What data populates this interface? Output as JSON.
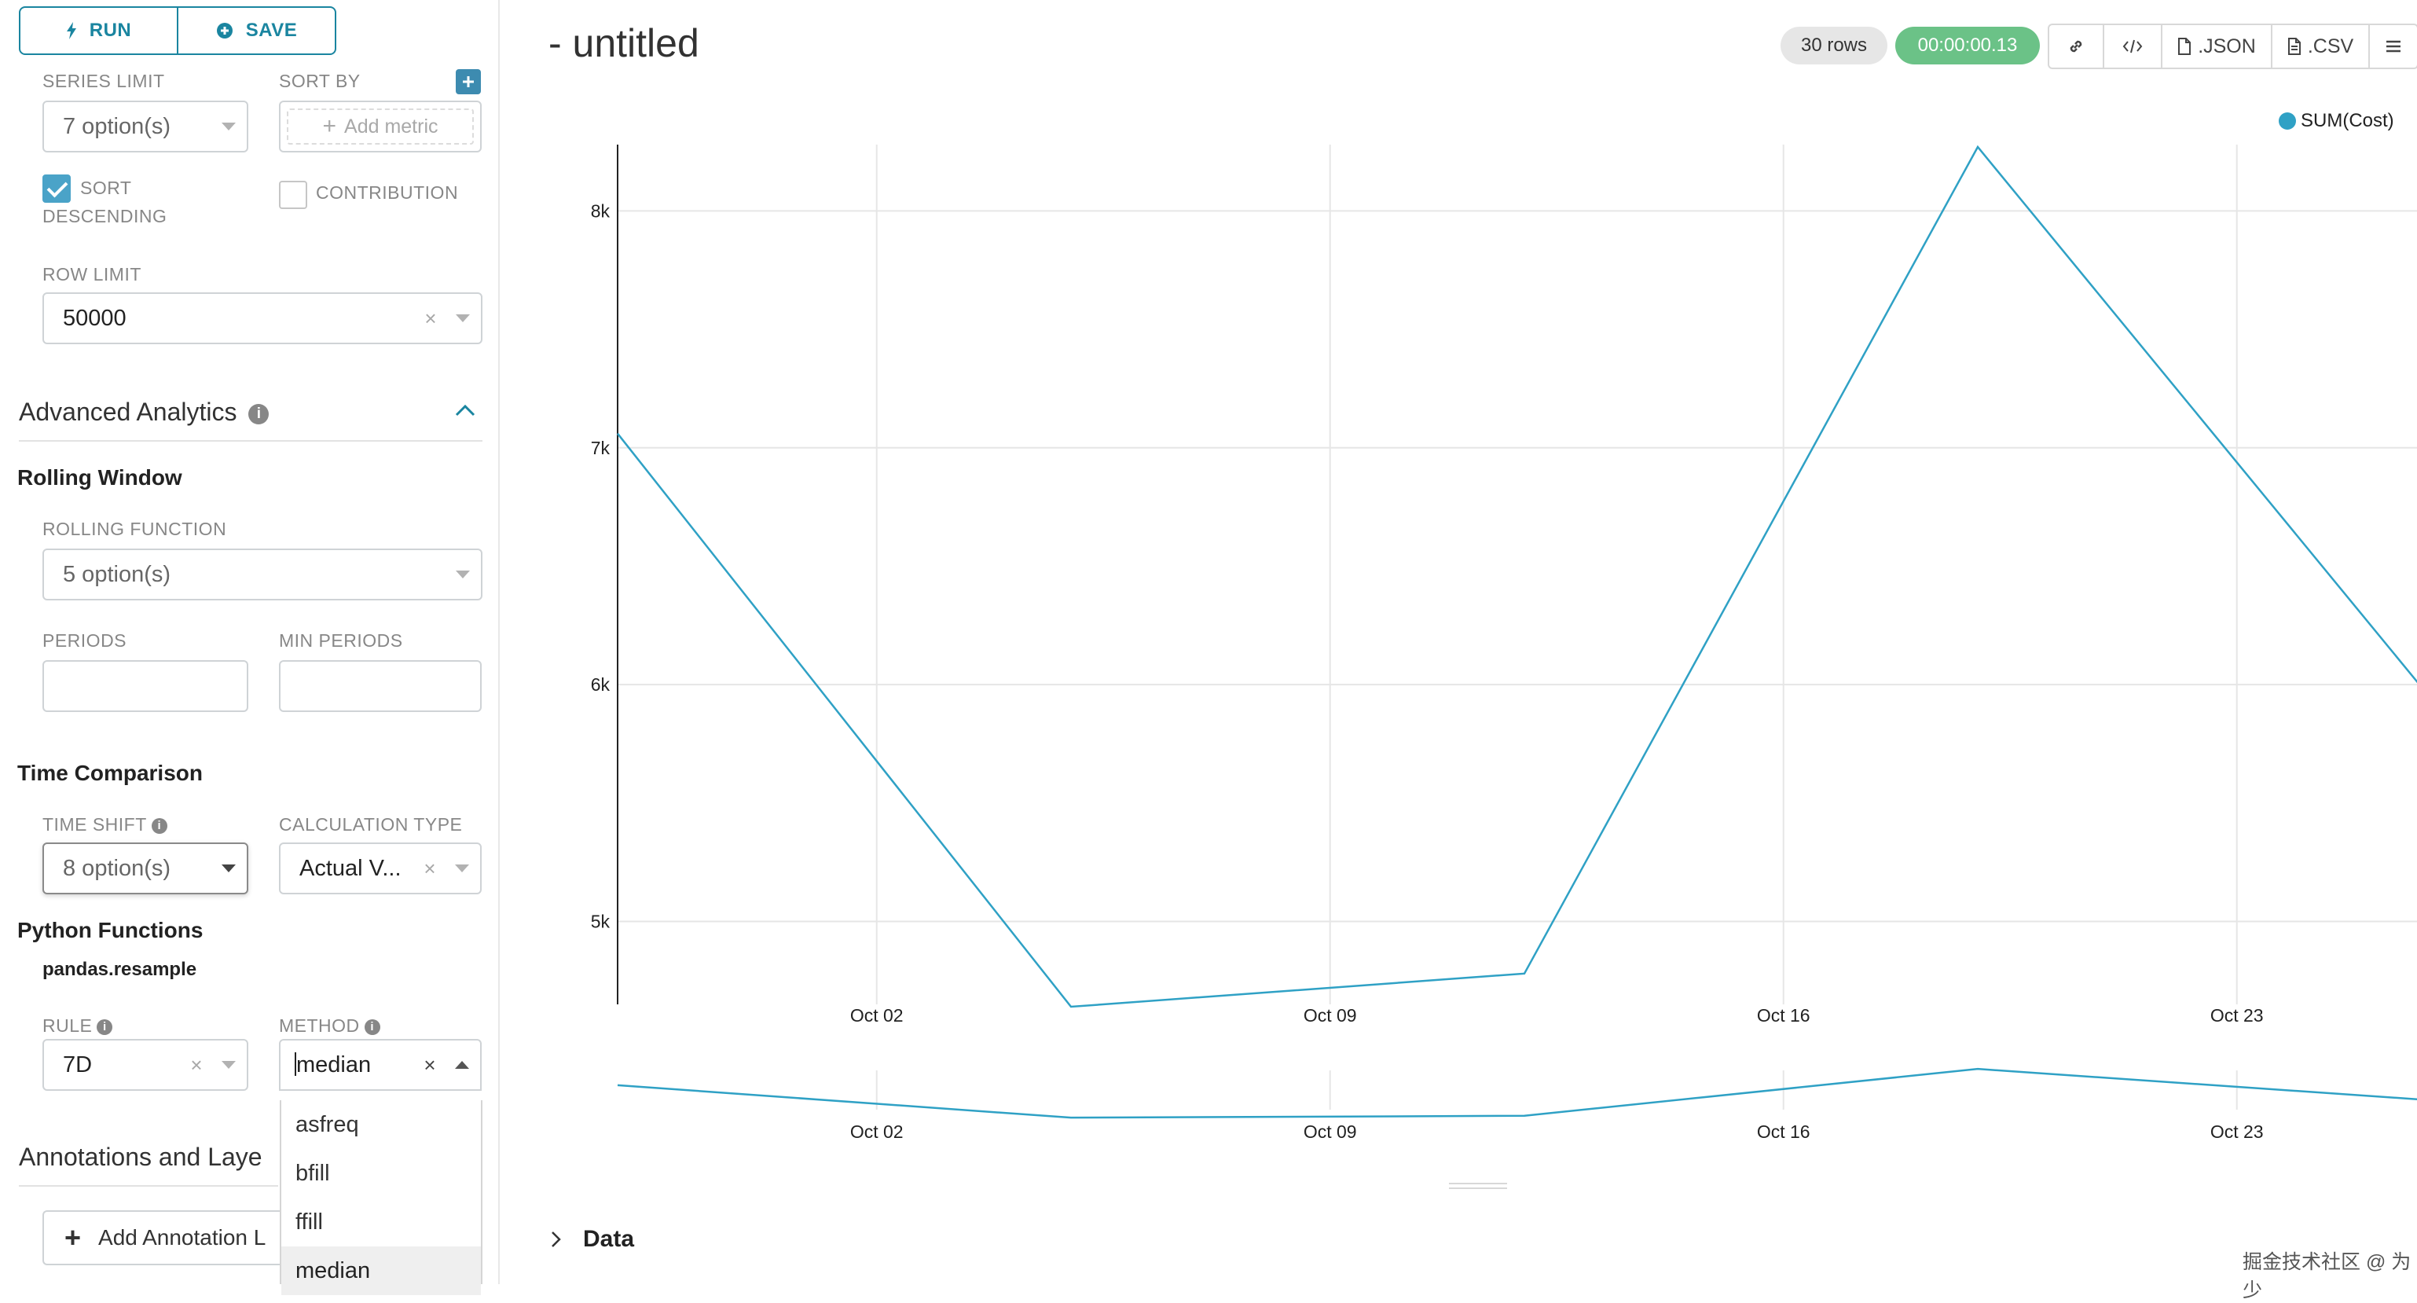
{
  "toolbar": {
    "run_label": "RUN",
    "save_label": "SAVE"
  },
  "query": {
    "series_limit": {
      "label": "SERIES LIMIT",
      "value": "7 option(s)"
    },
    "sort_by": {
      "label": "SORT BY",
      "placeholder": "Add metric"
    },
    "sort_descending": {
      "label_line1": "SORT",
      "label_line2": "DESCENDING",
      "checked": true
    },
    "contribution": {
      "label": "CONTRIBUTION",
      "checked": false
    },
    "row_limit": {
      "label": "ROW LIMIT",
      "value": "50000"
    }
  },
  "advanced": {
    "title": "Advanced Analytics",
    "rolling_window": {
      "heading": "Rolling Window",
      "rolling_function": {
        "label": "ROLLING FUNCTION",
        "value": "5 option(s)"
      },
      "periods": {
        "label": "PERIODS",
        "value": ""
      },
      "min_periods": {
        "label": "MIN PERIODS",
        "value": ""
      }
    },
    "time_comparison": {
      "heading": "Time Comparison",
      "time_shift": {
        "label": "TIME SHIFT",
        "value": "8 option(s)"
      },
      "calculation_type": {
        "label": "CALCULATION TYPE",
        "value": "Actual V..."
      }
    },
    "python_functions": {
      "heading": "Python Functions",
      "subheading": "pandas.resample",
      "rule": {
        "label": "RULE",
        "value": "7D"
      },
      "method": {
        "label": "METHOD",
        "value": "median",
        "options": [
          "asfreq",
          "bfill",
          "ffill",
          "median"
        ],
        "selected": "median"
      }
    }
  },
  "annotations": {
    "title": "Annotations and Laye",
    "add_button": "Add Annotation L"
  },
  "header": {
    "title": "- untitled",
    "rows": "30 rows",
    "timer": "00:00:00.13",
    "json_label": ".JSON",
    "csv_label": ".CSV"
  },
  "colors": {
    "accent": "#1a85a0",
    "series": "#2fa1c5",
    "success": "#6bc287"
  },
  "chart_data": {
    "type": "line",
    "series": [
      {
        "name": "SUM(Cost)",
        "points": [
          {
            "x": "2019-09-28",
            "y": 7060
          },
          {
            "x": "2019-10-05",
            "y": 4640
          },
          {
            "x": "2019-10-12",
            "y": 4780
          },
          {
            "x": "2019-10-19",
            "y": 8270
          },
          {
            "x": "2019-10-26",
            "y": 5940
          }
        ]
      }
    ],
    "x_ticks": [
      "Oct 02",
      "Oct 09",
      "Oct 16",
      "Oct 23"
    ],
    "y_ticks": [
      "5k",
      "6k",
      "7k",
      "8k"
    ],
    "y_tick_values": [
      5000,
      6000,
      7000,
      8000
    ],
    "ylim": [
      4650,
      8280
    ],
    "legend": "top-right",
    "grid": true,
    "overview_brush": true
  },
  "footer": {
    "data_label": "Data",
    "watermark": "掘金技术社区 @ 为少"
  }
}
